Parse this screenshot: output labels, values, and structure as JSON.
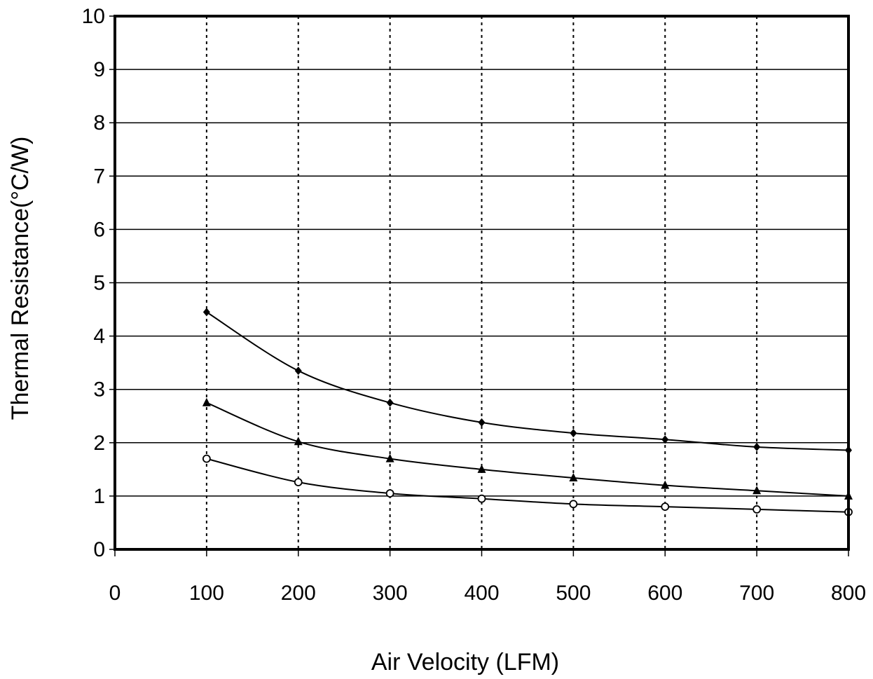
{
  "chart_data": {
    "type": "line",
    "title": "",
    "xlabel": "Air Velocity (LFM)",
    "ylabel": "Thermal Resistance(°C/W)",
    "xlim": [
      0,
      800
    ],
    "ylim": [
      0,
      10
    ],
    "x_ticks": [
      0,
      100,
      200,
      300,
      400,
      500,
      600,
      700,
      800
    ],
    "y_ticks": [
      0,
      1,
      2,
      3,
      4,
      5,
      6,
      7,
      8,
      9,
      10
    ],
    "grid": {
      "horizontal": "solid",
      "vertical": "dotted"
    },
    "legend": "none",
    "x": [
      100,
      200,
      300,
      400,
      500,
      600,
      700,
      800
    ],
    "series": [
      {
        "marker": "diamond",
        "values": [
          4.45,
          3.35,
          2.75,
          2.38,
          2.18,
          2.06,
          1.92,
          1.86
        ]
      },
      {
        "marker": "triangle",
        "values": [
          2.75,
          2.02,
          1.7,
          1.5,
          1.34,
          1.2,
          1.1,
          1.0
        ]
      },
      {
        "marker": "circle-open",
        "values": [
          1.7,
          1.26,
          1.05,
          0.95,
          0.85,
          0.8,
          0.75,
          0.7
        ]
      }
    ]
  }
}
